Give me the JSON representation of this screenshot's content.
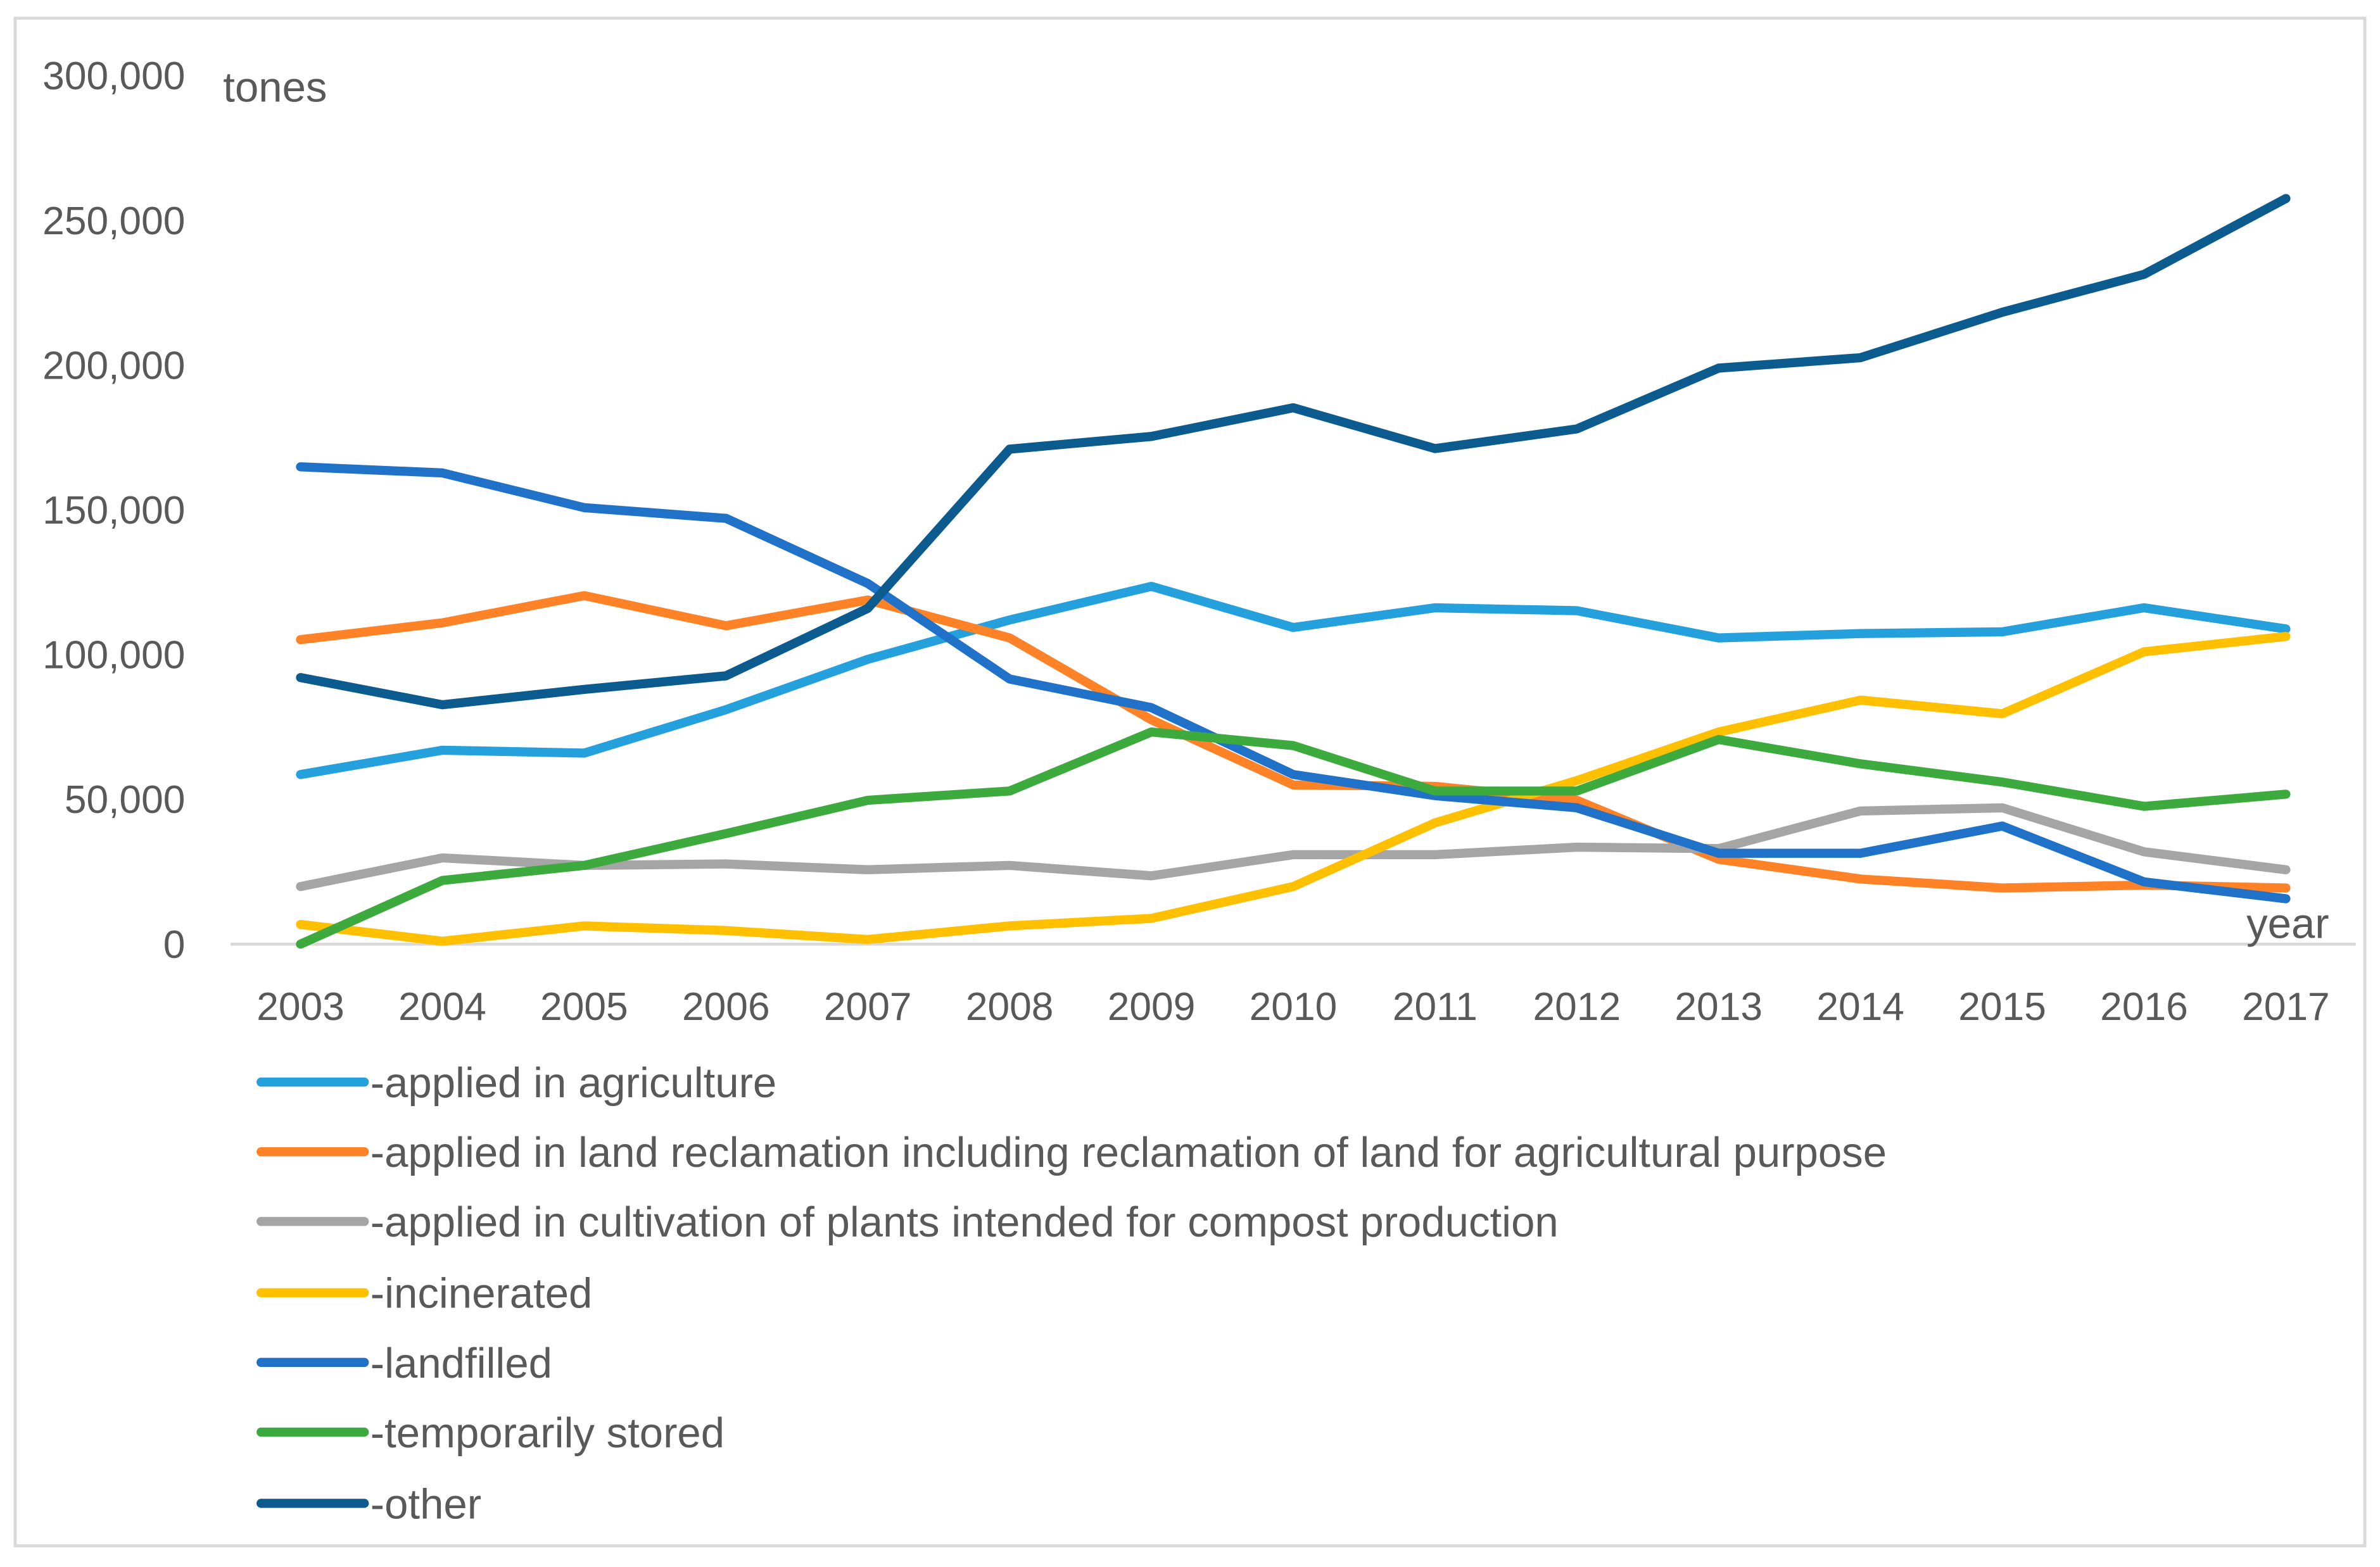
{
  "chart_data": {
    "type": "line",
    "title": "",
    "xlabel": "year",
    "ylabel": "tones",
    "ylim": [
      0,
      300000
    ],
    "yticks": [
      0,
      50000,
      100000,
      150000,
      200000,
      250000,
      300000
    ],
    "ytick_labels": [
      "0",
      "50,000",
      "100,000",
      "150,000",
      "200,000",
      "250,000",
      "300,000"
    ],
    "grid": false,
    "legend_position": "bottom",
    "categories": [
      "2003",
      "2004",
      "2005",
      "2006",
      "2007",
      "2008",
      "2009",
      "2010",
      "2011",
      "2012",
      "2013",
      "2014",
      "2015",
      "2016",
      "2017"
    ],
    "series": [
      {
        "name": "-applied in agriculture",
        "color": "#24A0DC",
        "values": [
          58600,
          67000,
          66000,
          81000,
          98400,
          112000,
          123600,
          109400,
          116200,
          115200,
          105800,
          107300,
          107900,
          116200,
          108900
        ]
      },
      {
        "name": "-applied in land reclamation including reclamation of land for agricultural purpose",
        "color": "#FF8226",
        "values": [
          105200,
          111000,
          120400,
          110000,
          118900,
          105800,
          77500,
          55000,
          54500,
          49700,
          29300,
          22500,
          19400,
          20400,
          19400
        ]
      },
      {
        "name": "-applied in cultivation of plants intended for compost production",
        "color": "#A5A5A5",
        "values": [
          19900,
          29800,
          27200,
          27700,
          25700,
          27200,
          23600,
          30900,
          30900,
          33500,
          33000,
          46000,
          47100,
          31900,
          25700
        ]
      },
      {
        "name": "-incinerated",
        "color": "#FFC000",
        "values": [
          6800,
          1000,
          6300,
          4700,
          1600,
          6300,
          8900,
          19900,
          41900,
          56500,
          73300,
          84300,
          79600,
          101000,
          106300
        ]
      },
      {
        "name": "-landfilled",
        "color": "#1F72C8",
        "values": [
          164900,
          162800,
          150800,
          147100,
          124600,
          91600,
          81700,
          58600,
          51300,
          47100,
          31400,
          31400,
          40800,
          21500,
          15700
        ]
      },
      {
        "name": "-temporarily stored",
        "color": "#3DAA3D",
        "values": [
          0,
          22000,
          27200,
          38200,
          49700,
          52900,
          73300,
          68600,
          52900,
          52900,
          70700,
          62300,
          56000,
          47600,
          51800
        ]
      },
      {
        "name": "-other",
        "color": "#0B5B8F",
        "values": [
          92100,
          82700,
          88000,
          92700,
          116000,
          171000,
          175400,
          185300,
          171200,
          178000,
          199000,
          202600,
          218300,
          231400,
          257600
        ]
      }
    ]
  }
}
